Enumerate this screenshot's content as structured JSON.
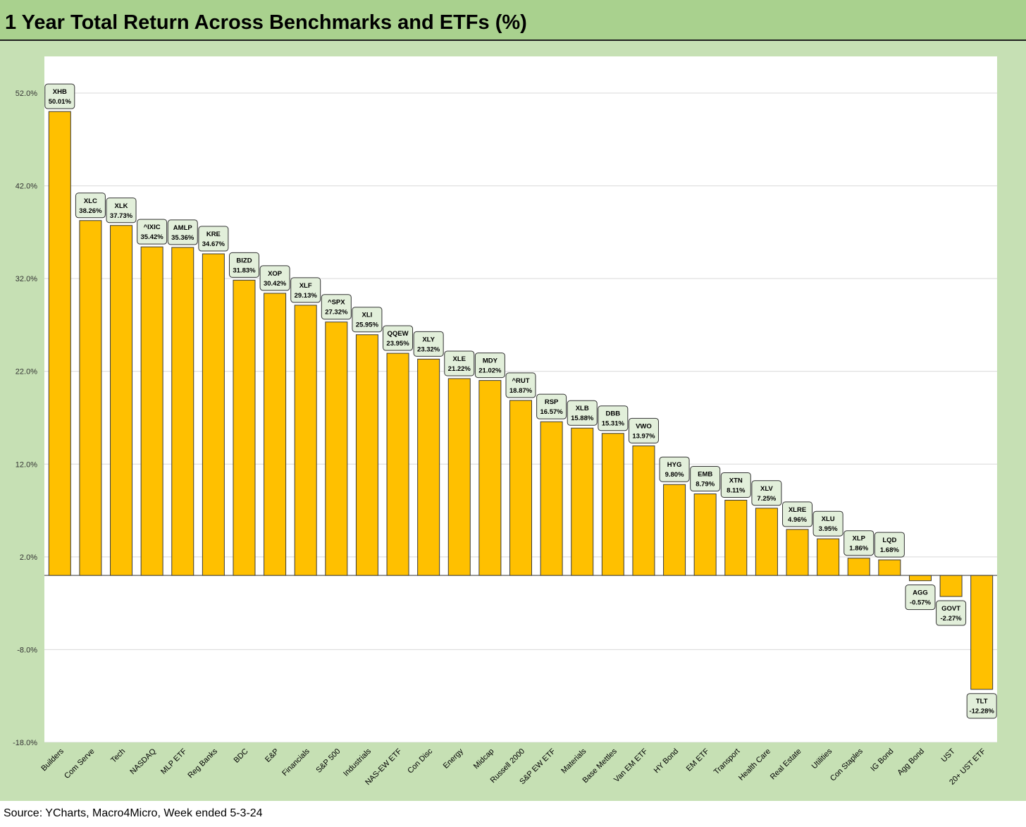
{
  "title": "1 Year Total Return Across Benchmarks and ETFs (%)",
  "source": "Source: YCharts, Macro4Micro, Week ended 5-3-24",
  "colors": {
    "bar": "#ffc000",
    "bar_outline": "#3a3a3a",
    "title_band": "#a9d18e",
    "background": "#c6e0b4",
    "label_box": "#e2efda"
  },
  "chart_data": {
    "type": "bar",
    "title": "1 Year Total Return Across Benchmarks and ETFs (%)",
    "ylim": [
      -18,
      52
    ],
    "yticks": [
      -18,
      -8,
      2,
      12,
      22,
      32,
      42,
      52
    ],
    "ytick_labels": [
      "-18.0%",
      "-8.0%",
      "2.0%",
      "12.0%",
      "22.0%",
      "32.0%",
      "42.0%",
      "52.0%"
    ],
    "grid": true,
    "categories": [
      "Builders",
      "Com Serve",
      "Tech",
      "NASDAQ",
      "MLP ETF",
      "Reg Banks",
      "BDC",
      "E&P",
      "Financials",
      "S&P 500",
      "Industrials",
      "NAS-EW ETF",
      "Con Disc",
      "Energy",
      "Midcap",
      "Russell 2000",
      "S&P EW ETF",
      "Materials",
      "Base Mettles",
      "Van EM ETF",
      "HY Bond",
      "EM ETF",
      "Transport",
      "Health Care",
      "Real Estate",
      "Utilities",
      "Con Staples",
      "IG Bond",
      "Agg Bond",
      "UST",
      "20+ UST ETF"
    ],
    "tickers": [
      "XHB",
      "XLC",
      "XLK",
      "^IXIC",
      "AMLP",
      "KRE",
      "BIZD",
      "XOP",
      "XLF",
      "^SPX",
      "XLI",
      "QQEW",
      "XLY",
      "XLE",
      "MDY",
      "^RUT",
      "RSP",
      "XLB",
      "DBB",
      "VWO",
      "HYG",
      "EMB",
      "XTN",
      "XLV",
      "XLRE",
      "XLU",
      "XLP",
      "LQD",
      "AGG",
      "GOVT",
      "TLT"
    ],
    "values": [
      50.01,
      38.26,
      37.73,
      35.42,
      35.36,
      34.67,
      31.83,
      30.42,
      29.13,
      27.32,
      25.95,
      23.95,
      23.32,
      21.22,
      21.02,
      18.87,
      16.57,
      15.88,
      15.31,
      13.97,
      9.8,
      8.79,
      8.11,
      7.25,
      4.96,
      3.95,
      1.86,
      1.68,
      -0.57,
      -2.27,
      -12.28
    ],
    "value_labels": [
      "50.01%",
      "38.26%",
      "37.73%",
      "35.42%",
      "35.36%",
      "34.67%",
      "31.83%",
      "30.42%",
      "29.13%",
      "27.32%",
      "25.95%",
      "23.95%",
      "23.32%",
      "21.22%",
      "21.02%",
      "18.87%",
      "16.57%",
      "15.88%",
      "15.31%",
      "13.97%",
      "9.80%",
      "8.79%",
      "8.11%",
      "7.25%",
      "4.96%",
      "3.95%",
      "1.86%",
      "1.68%",
      "-0.57%",
      "-2.27%",
      "-12.28%"
    ]
  }
}
